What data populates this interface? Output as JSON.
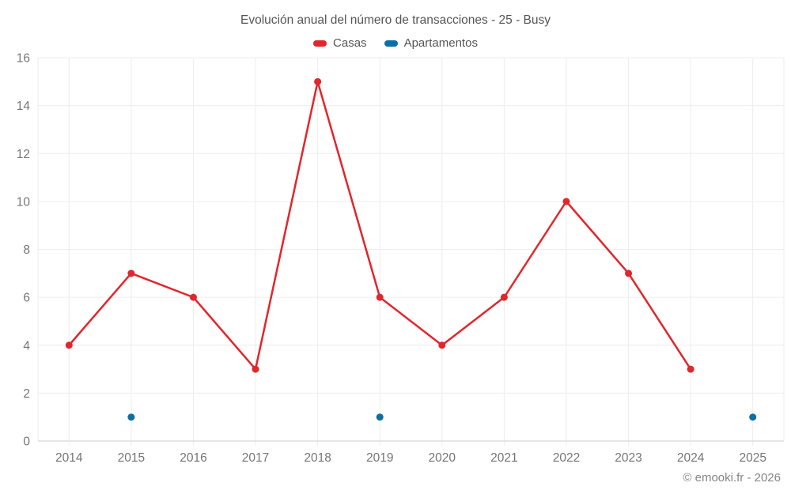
{
  "page": {
    "footer": "© emooki.fr - 2026"
  },
  "chart_data": {
    "type": "line",
    "title": "Evolución anual del número de transacciones - 25 - Busy",
    "categories": [
      "2014",
      "2015",
      "2016",
      "2017",
      "2018",
      "2019",
      "2020",
      "2021",
      "2022",
      "2023",
      "2024",
      "2025"
    ],
    "series": [
      {
        "name": "Casas",
        "color": "#e1262c",
        "values": [
          4,
          7,
          6,
          3,
          15,
          6,
          4,
          6,
          10,
          7,
          3,
          null
        ]
      },
      {
        "name": "Apartamentos",
        "color": "#0e6fa4",
        "values": [
          null,
          1,
          null,
          null,
          null,
          1,
          null,
          null,
          null,
          null,
          null,
          1
        ]
      }
    ],
    "xlabel": "",
    "ylabel": "",
    "ylim": [
      0,
      16
    ],
    "yticks": [
      0,
      2,
      4,
      6,
      8,
      10,
      12,
      14,
      16
    ],
    "grid": true,
    "legend_position": "top"
  },
  "theme": {
    "grid_color": "#ededed",
    "axis_color": "#cfcfcf",
    "tick_label_color": "#757575",
    "title_color": "#555555"
  }
}
